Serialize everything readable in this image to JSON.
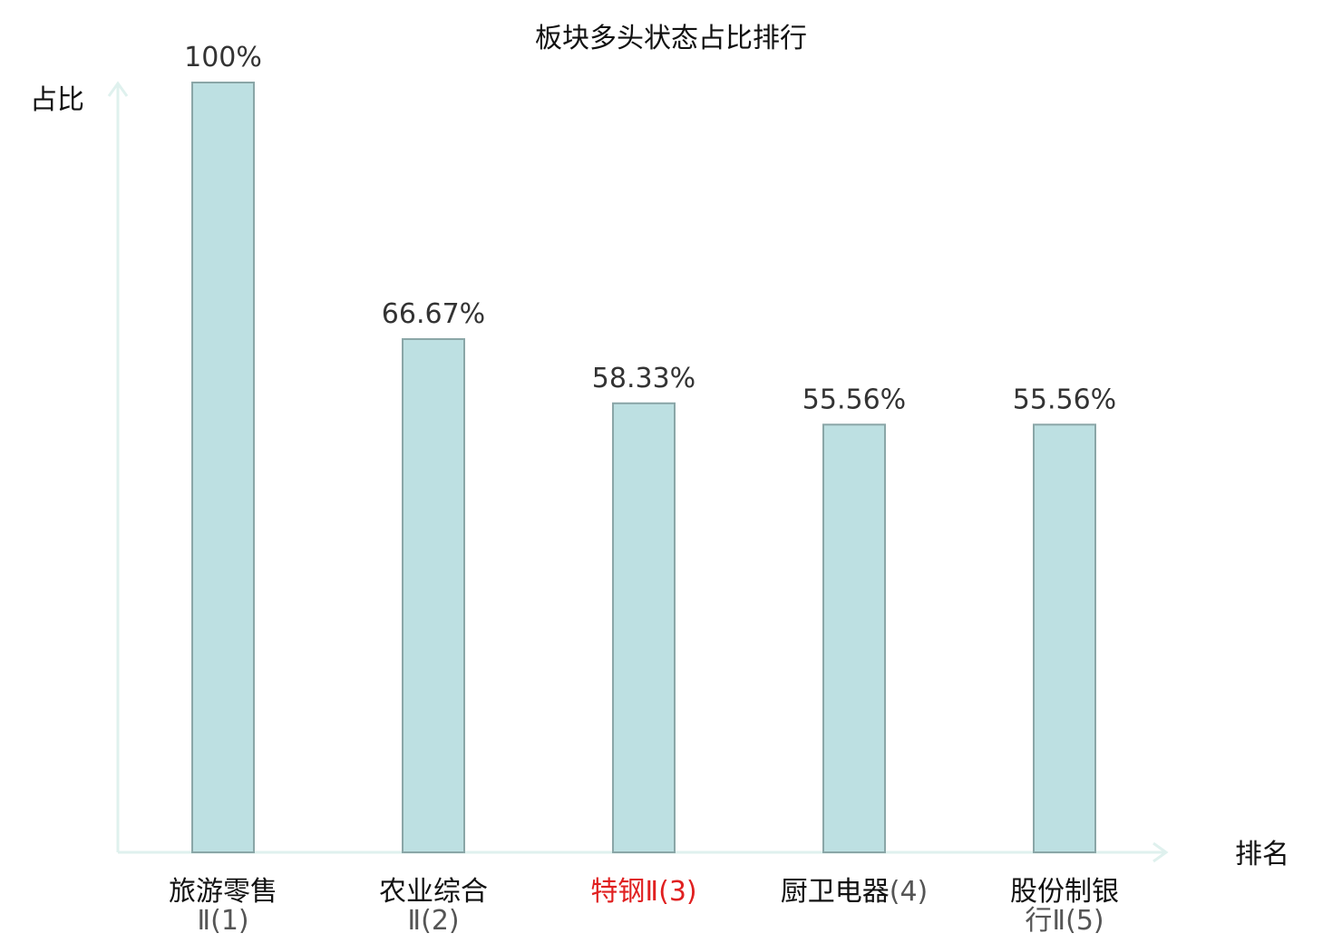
{
  "chart_data": {
    "type": "bar",
    "title": "板块多头状态占比排行",
    "ylabel": "占比",
    "xlabel": "排名",
    "ylim": [
      0,
      100
    ],
    "grid": false,
    "legend": "none",
    "categories": [
      {
        "name": "旅游零售",
        "suffix": "Ⅱ(1)",
        "highlight": false
      },
      {
        "name": "农业综合",
        "suffix": "Ⅱ(2)",
        "highlight": false
      },
      {
        "name": "特钢",
        "suffix": "Ⅱ(3)",
        "highlight": true
      },
      {
        "name": "厨卫电器",
        "suffix": "(4)",
        "highlight": false
      },
      {
        "name": "股份制银",
        "suffix": "行Ⅱ(5)",
        "highlight": false
      }
    ],
    "values": [
      100,
      66.67,
      58.33,
      55.56,
      55.56
    ],
    "value_labels": [
      "100%",
      "66.67%",
      "58.33%",
      "55.56%",
      "55.56%"
    ]
  },
  "colors": {
    "bar_fill": "#bde0e2",
    "bar_stroke": "#8aa6a7",
    "axis": "#dff1ee",
    "highlight_text": "#e02020"
  }
}
